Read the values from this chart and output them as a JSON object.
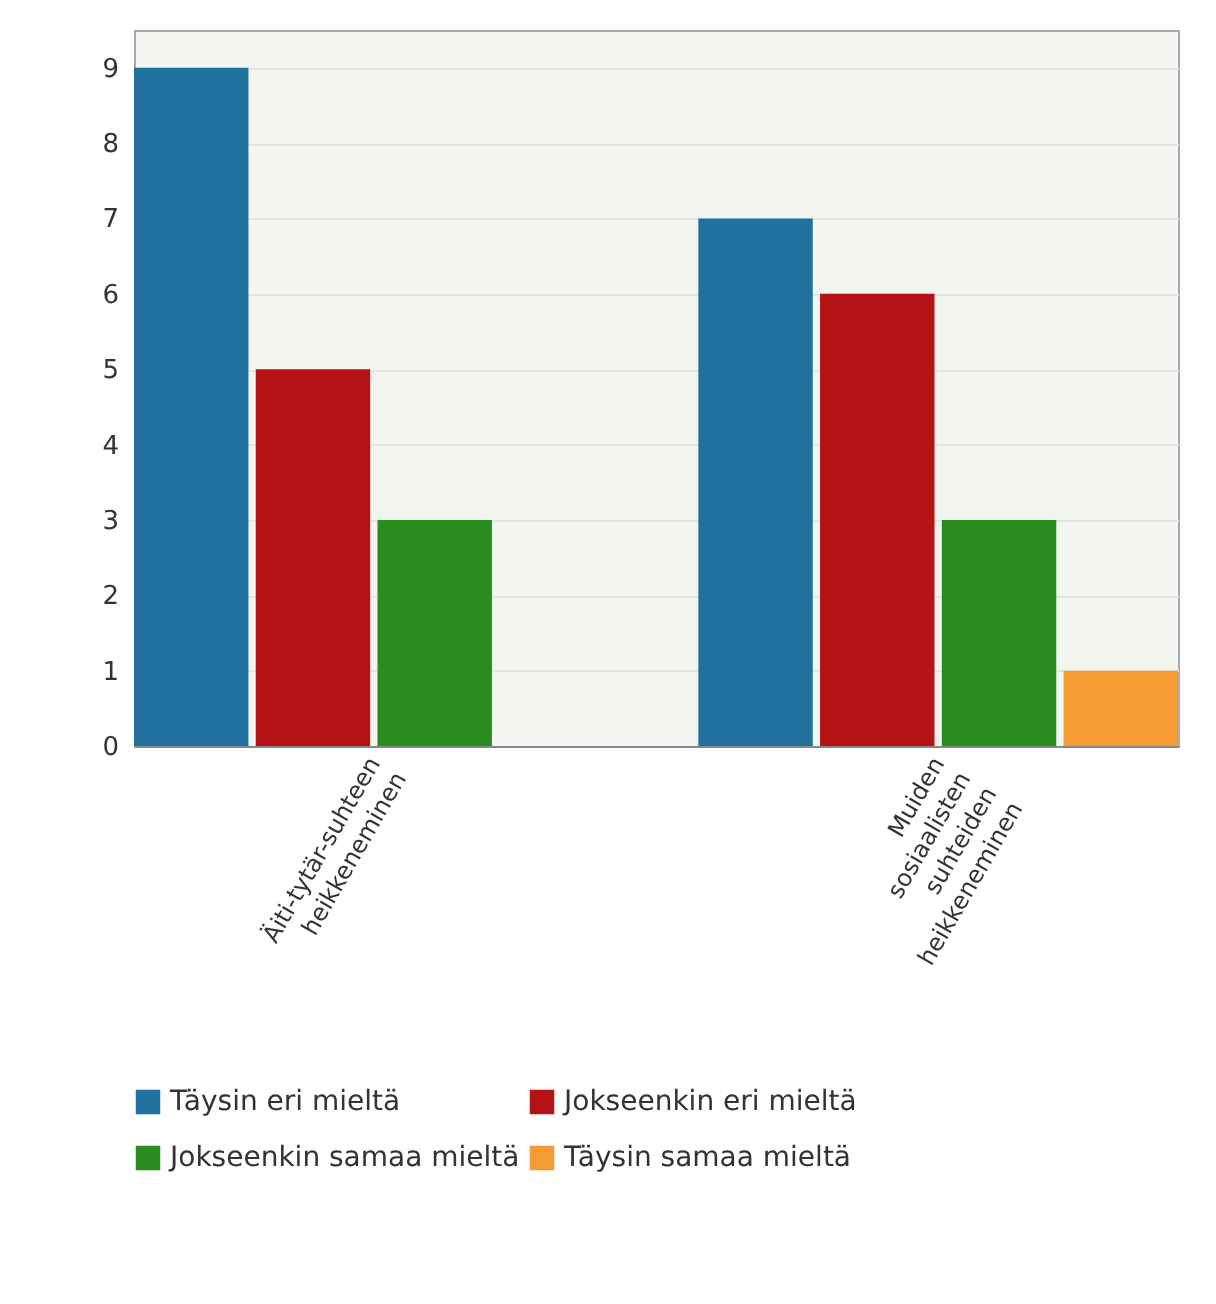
{
  "chart_data": {
    "type": "bar",
    "categories": [
      "Äiti-tytär-suhteen heikkeneminen",
      "Muiden sosiaalisten suhteiden heikkeneminen"
    ],
    "series": [
      {
        "name": "Täysin eri mieltä",
        "color": "#21719f",
        "values": [
          9,
          7
        ]
      },
      {
        "name": "Jokseenkin eri mieltä",
        "color": "#b51215",
        "values": [
          5,
          6
        ]
      },
      {
        "name": "Jokseenkin samaa mieltä",
        "color": "#2a8c1e",
        "values": [
          3,
          3
        ]
      },
      {
        "name": "Täysin samaa mieltä",
        "color": "#f59b33",
        "values": [
          0,
          1
        ]
      }
    ],
    "ylim": [
      0,
      9.5
    ],
    "yticks": [
      0,
      1,
      2,
      3,
      4,
      5,
      6,
      7,
      8,
      9
    ],
    "grid": "y",
    "legend": "bottom"
  }
}
